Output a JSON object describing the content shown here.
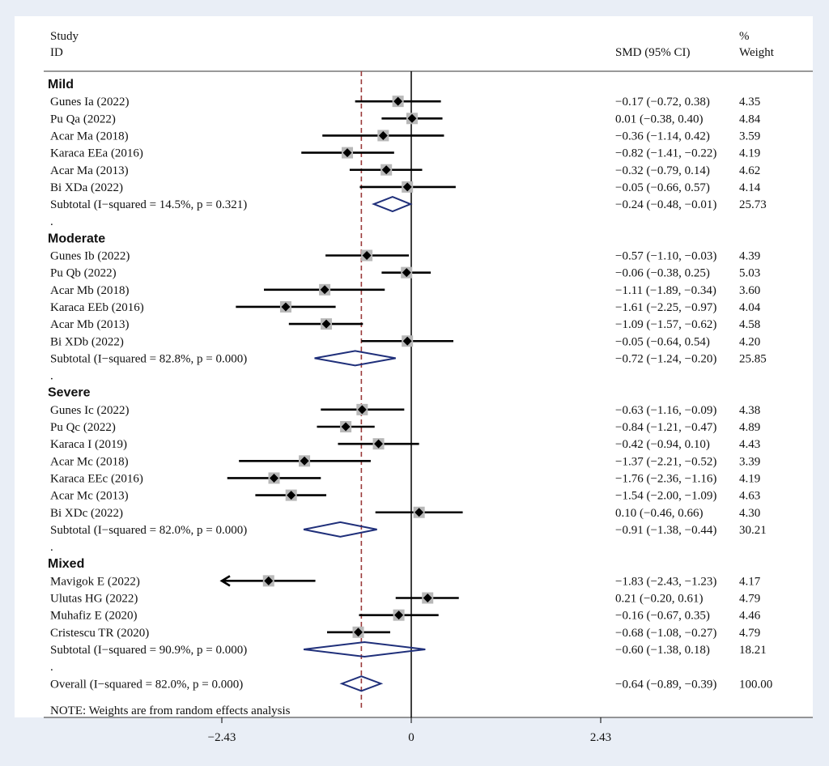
{
  "header": {
    "study_label": "Study",
    "id_label": "ID",
    "effect_label": "SMD (95% CI)",
    "pct_label": "%",
    "weight_label": "Weight"
  },
  "note": "NOTE: Weights are from random effects analysis",
  "colors": {
    "marker_box": "#b8b8b8",
    "diamond": "#1f2f7a",
    "ref_line": "#9b3b3b",
    "line": "#000000"
  },
  "chart_data": {
    "type": "forest",
    "x_ticks": [
      {
        "value": -2.43,
        "label": "−2.43"
      },
      {
        "value": 0,
        "label": "0"
      },
      {
        "value": 2.43,
        "label": "2.43"
      }
    ],
    "overall_effect_ref": -0.64,
    "rows": [
      {
        "kind": "group",
        "label": "Mild"
      },
      {
        "kind": "study",
        "label": "Gunes Ia (2022)",
        "est": -0.17,
        "lo": -0.72,
        "hi": 0.38,
        "ci_text": "−0.17 (−0.72, 0.38)",
        "weight": "4.35"
      },
      {
        "kind": "study",
        "label": "Pu Qa (2022)",
        "est": 0.01,
        "lo": -0.38,
        "hi": 0.4,
        "ci_text": "0.01 (−0.38, 0.40)",
        "weight": "4.84"
      },
      {
        "kind": "study",
        "label": "Acar Ma (2018)",
        "est": -0.36,
        "lo": -1.14,
        "hi": 0.42,
        "ci_text": "−0.36 (−1.14, 0.42)",
        "weight": "3.59"
      },
      {
        "kind": "study",
        "label": "Karaca EEa (2016)",
        "est": -0.82,
        "lo": -1.41,
        "hi": -0.22,
        "ci_text": "−0.82 (−1.41, −0.22)",
        "weight": "4.19"
      },
      {
        "kind": "study",
        "label": "Acar Ma (2013)",
        "est": -0.32,
        "lo": -0.79,
        "hi": 0.14,
        "ci_text": "−0.32 (−0.79, 0.14)",
        "weight": "4.62"
      },
      {
        "kind": "study",
        "label": "Bi XDa (2022)",
        "est": -0.05,
        "lo": -0.66,
        "hi": 0.57,
        "ci_text": "−0.05 (−0.66, 0.57)",
        "weight": "4.14"
      },
      {
        "kind": "subtotal",
        "label": "Subtotal  (I−squared = 14.5%, p = 0.321)",
        "est": -0.24,
        "lo": -0.48,
        "hi": -0.01,
        "ci_text": "−0.24 (−0.48, −0.01)",
        "weight": "25.73"
      },
      {
        "kind": "dot",
        "label": "."
      },
      {
        "kind": "group",
        "label": "Moderate"
      },
      {
        "kind": "study",
        "label": "Gunes Ib (2022)",
        "est": -0.57,
        "lo": -1.1,
        "hi": -0.03,
        "ci_text": "−0.57 (−1.10, −0.03)",
        "weight": "4.39"
      },
      {
        "kind": "study",
        "label": "Pu Qb (2022)",
        "est": -0.06,
        "lo": -0.38,
        "hi": 0.25,
        "ci_text": "−0.06 (−0.38, 0.25)",
        "weight": "5.03"
      },
      {
        "kind": "study",
        "label": "Acar Mb (2018)",
        "est": -1.11,
        "lo": -1.89,
        "hi": -0.34,
        "ci_text": "−1.11 (−1.89, −0.34)",
        "weight": "3.60"
      },
      {
        "kind": "study",
        "label": "Karaca EEb (2016)",
        "est": -1.61,
        "lo": -2.25,
        "hi": -0.97,
        "ci_text": "−1.61 (−2.25, −0.97)",
        "weight": "4.04"
      },
      {
        "kind": "study",
        "label": "Acar Mb (2013)",
        "est": -1.09,
        "lo": -1.57,
        "hi": -0.62,
        "ci_text": "−1.09 (−1.57, −0.62)",
        "weight": "4.58"
      },
      {
        "kind": "study",
        "label": "Bi XDb (2022)",
        "est": -0.05,
        "lo": -0.64,
        "hi": 0.54,
        "ci_text": "−0.05 (−0.64, 0.54)",
        "weight": "4.20"
      },
      {
        "kind": "subtotal",
        "label": "Subtotal  (I−squared = 82.8%, p = 0.000)",
        "est": -0.72,
        "lo": -1.24,
        "hi": -0.2,
        "ci_text": "−0.72 (−1.24, −0.20)",
        "weight": "25.85"
      },
      {
        "kind": "dot",
        "label": "."
      },
      {
        "kind": "group",
        "label": "Severe"
      },
      {
        "kind": "study",
        "label": "Gunes Ic (2022)",
        "est": -0.63,
        "lo": -1.16,
        "hi": -0.09,
        "ci_text": "−0.63 (−1.16, −0.09)",
        "weight": "4.38"
      },
      {
        "kind": "study",
        "label": "Pu Qc (2022)",
        "est": -0.84,
        "lo": -1.21,
        "hi": -0.47,
        "ci_text": "−0.84 (−1.21, −0.47)",
        "weight": "4.89"
      },
      {
        "kind": "study",
        "label": "Karaca I (2019)",
        "est": -0.42,
        "lo": -0.94,
        "hi": 0.1,
        "ci_text": "−0.42 (−0.94, 0.10)",
        "weight": "4.43"
      },
      {
        "kind": "study",
        "label": "Acar Mc (2018)",
        "est": -1.37,
        "lo": -2.21,
        "hi": -0.52,
        "ci_text": "−1.37 (−2.21, −0.52)",
        "weight": "3.39"
      },
      {
        "kind": "study",
        "label": "Karaca EEc (2016)",
        "est": -1.76,
        "lo": -2.36,
        "hi": -1.16,
        "ci_text": "−1.76 (−2.36, −1.16)",
        "weight": "4.19"
      },
      {
        "kind": "study",
        "label": "Acar Mc (2013)",
        "est": -1.54,
        "lo": -2.0,
        "hi": -1.09,
        "ci_text": "−1.54 (−2.00, −1.09)",
        "weight": "4.63"
      },
      {
        "kind": "study",
        "label": "Bi XDc (2022)",
        "est": 0.1,
        "lo": -0.46,
        "hi": 0.66,
        "ci_text": "0.10 (−0.46, 0.66)",
        "weight": "4.30"
      },
      {
        "kind": "subtotal",
        "label": "Subtotal  (I−squared = 82.0%, p = 0.000)",
        "est": -0.91,
        "lo": -1.38,
        "hi": -0.44,
        "ci_text": "−0.91 (−1.38, −0.44)",
        "weight": "30.21"
      },
      {
        "kind": "dot",
        "label": "."
      },
      {
        "kind": "group",
        "label": "Mixed"
      },
      {
        "kind": "study",
        "label": "Mavigok E (2022)",
        "est": -1.83,
        "lo": -2.43,
        "hi": -1.23,
        "ci_text": "−1.83 (−2.43, −1.23)",
        "weight": "4.17",
        "arrow_left": true
      },
      {
        "kind": "study",
        "label": "Ulutas HG (2022)",
        "est": 0.21,
        "lo": -0.2,
        "hi": 0.61,
        "ci_text": "0.21 (−0.20, 0.61)",
        "weight": "4.79"
      },
      {
        "kind": "study",
        "label": "Muhafiz E (2020)",
        "est": -0.16,
        "lo": -0.67,
        "hi": 0.35,
        "ci_text": "−0.16 (−0.67, 0.35)",
        "weight": "4.46"
      },
      {
        "kind": "study",
        "label": "Cristescu TR (2020)",
        "est": -0.68,
        "lo": -1.08,
        "hi": -0.27,
        "ci_text": "−0.68 (−1.08, −0.27)",
        "weight": "4.79"
      },
      {
        "kind": "subtotal",
        "label": "Subtotal  (I−squared = 90.9%, p = 0.000)",
        "est": -0.6,
        "lo": -1.38,
        "hi": 0.18,
        "ci_text": "−0.60 (−1.38, 0.18)",
        "weight": "18.21"
      },
      {
        "kind": "dot",
        "label": "."
      },
      {
        "kind": "subtotal",
        "label": "Overall  (I−squared = 82.0%, p = 0.000)",
        "est": -0.64,
        "lo": -0.89,
        "hi": -0.39,
        "ci_text": "−0.64 (−0.89, −0.39)",
        "weight": "100.00"
      }
    ]
  }
}
